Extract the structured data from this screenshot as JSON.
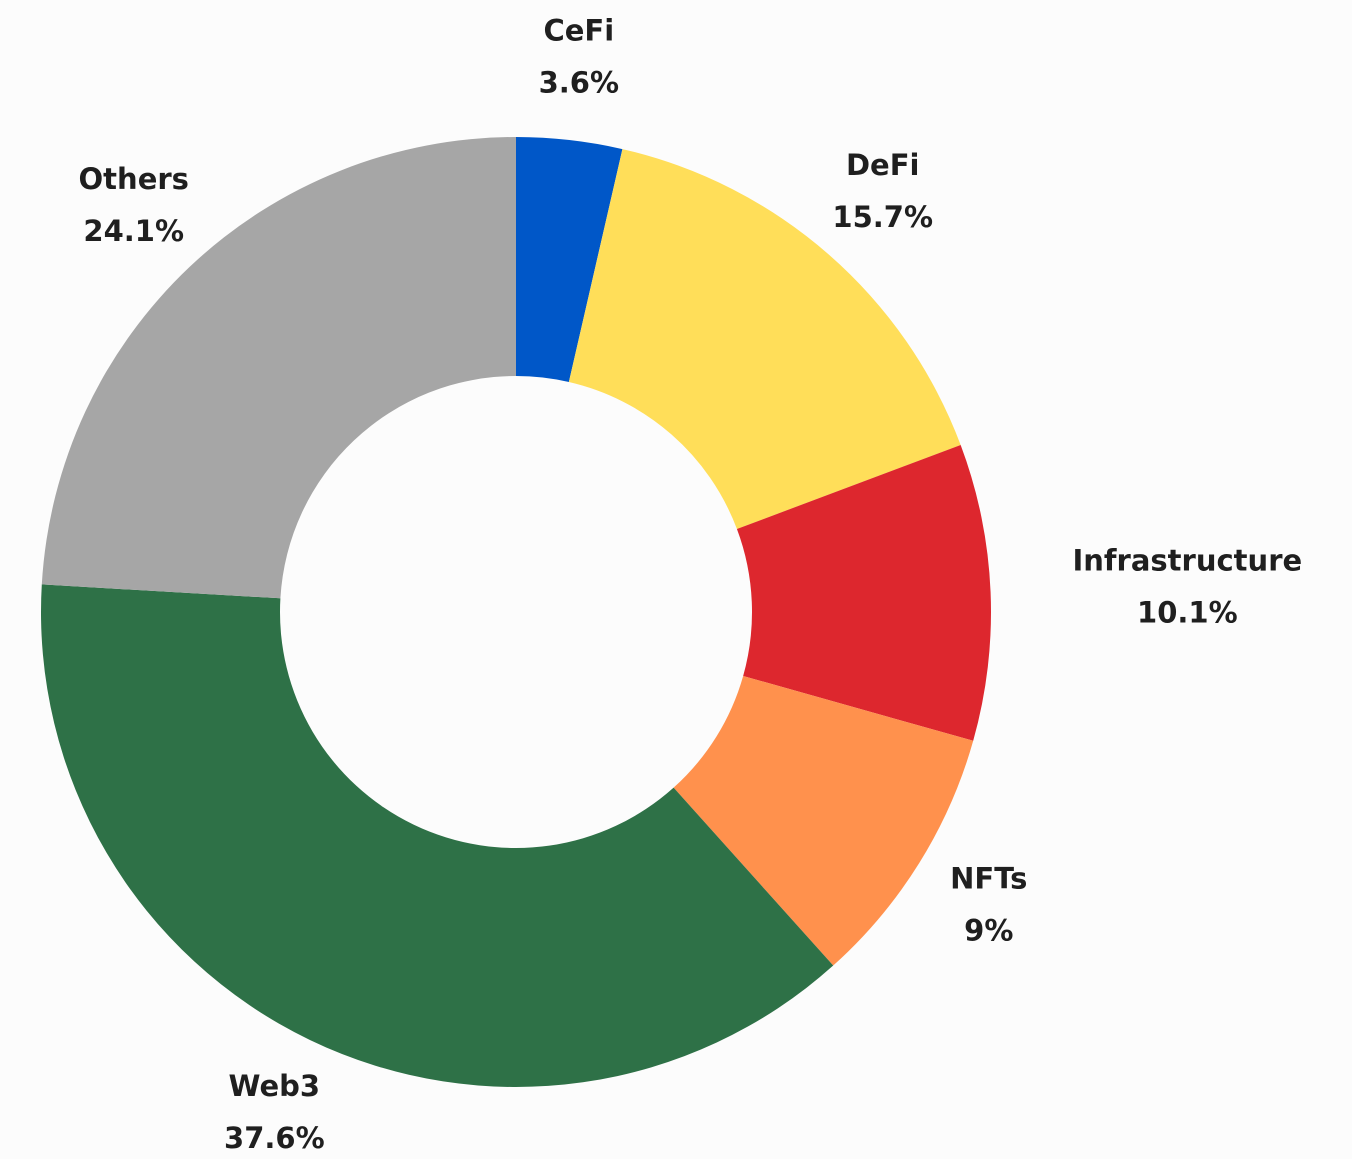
{
  "chart_data": {
    "type": "donut",
    "categories": [
      "CeFi",
      "DeFi",
      "Infrastructure",
      "NFTs",
      "Web3",
      "Others"
    ],
    "values": [
      3.6,
      15.7,
      10.1,
      9,
      37.6,
      24.1
    ],
    "value_labels": [
      "3.6%",
      "15.7%",
      "10.1%",
      "9%",
      "37.6%",
      "24.1%"
    ],
    "colors": [
      "#0057c8",
      "#ffde59",
      "#dd272e",
      "#ff914d",
      "#2e7147",
      "#a6a6a6"
    ]
  }
}
